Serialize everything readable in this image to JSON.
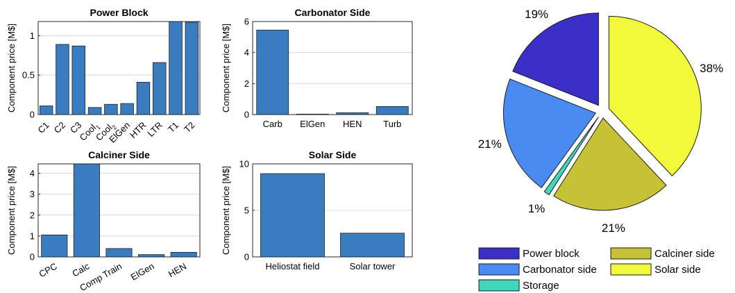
{
  "chart_data": [
    {
      "type": "bar",
      "title": "Power Block",
      "ylabel": "Component price [M$]",
      "xlabel": "",
      "categories": [
        "C1",
        "C2",
        "C3",
        "Cool1",
        "Cool2",
        "ElGen",
        "HTR",
        "LTR",
        "T1",
        "T2"
      ],
      "category_labels": [
        {
          "text": "C1",
          "sub": ""
        },
        {
          "text": "C2",
          "sub": ""
        },
        {
          "text": "C3",
          "sub": ""
        },
        {
          "text": "Cool",
          "sub": "1"
        },
        {
          "text": "Cool",
          "sub": "2"
        },
        {
          "text": "ElGen",
          "sub": ""
        },
        {
          "text": "HTR",
          "sub": ""
        },
        {
          "text": "LTR",
          "sub": ""
        },
        {
          "text": "T1",
          "sub": ""
        },
        {
          "text": "T2",
          "sub": ""
        }
      ],
      "values": [
        0.11,
        0.89,
        0.87,
        0.09,
        0.13,
        0.14,
        0.41,
        0.66,
        1.18,
        1.17
      ],
      "ylim": [
        0,
        1.18
      ],
      "yticks": [
        0,
        0.5,
        1
      ],
      "ytick_labels": [
        "0",
        "0.5",
        "1"
      ],
      "grid": true,
      "tick_rotation": 45
    },
    {
      "type": "bar",
      "title": "Carbonator Side",
      "ylabel": "Component price [M$]",
      "xlabel": "",
      "categories": [
        "Carb",
        "ElGen",
        "HEN",
        "Turb"
      ],
      "values": [
        5.45,
        0.03,
        0.12,
        0.52
      ],
      "ylim": [
        0,
        6
      ],
      "yticks": [
        0,
        2,
        4,
        6
      ],
      "ytick_labels": [
        "0",
        "2",
        "4",
        "6"
      ],
      "grid": true,
      "tick_rotation": 0
    },
    {
      "type": "bar",
      "title": "Calciner Side",
      "ylabel": "Component price [M$]",
      "xlabel": "",
      "categories": [
        "CPC",
        "Calc",
        "Comp Train",
        "ElGen",
        "HEN"
      ],
      "values": [
        1.05,
        4.45,
        0.4,
        0.11,
        0.22
      ],
      "ylim": [
        0,
        4.45
      ],
      "yticks": [
        0,
        1,
        2,
        3,
        4
      ],
      "ytick_labels": [
        "0",
        "1",
        "2",
        "3",
        "4"
      ],
      "grid": true,
      "tick_rotation": 30
    },
    {
      "type": "bar",
      "title": "Solar Side",
      "ylabel": "Component price [M$]",
      "xlabel": "",
      "categories": [
        "Heliostat field",
        "Solar tower"
      ],
      "values": [
        8.95,
        2.55
      ],
      "ylim": [
        0,
        10
      ],
      "yticks": [
        0,
        5,
        10
      ],
      "ytick_labels": [
        "0",
        "5",
        "10"
      ],
      "grid": true,
      "tick_rotation": 0
    },
    {
      "type": "pie",
      "title": "",
      "labels": [
        "Power block",
        "Carbonator side",
        "Storage",
        "Calciner side",
        "Solar side"
      ],
      "values": [
        19,
        21,
        1,
        21,
        38
      ],
      "value_labels": [
        "19%",
        "21%",
        "1%",
        "21%",
        "38%"
      ],
      "colors": [
        "#3c2fc8",
        "#4a8bf2",
        "#41d7bd",
        "#c6c235",
        "#f2f83a"
      ],
      "exploded": true,
      "legend_position": "bottom",
      "legend_columns": 2
    }
  ],
  "colors": {
    "bar": "#3a7cc0",
    "bar_edge": "#1e1e1e",
    "grid": "#d9d9d9",
    "axis": "#262626"
  }
}
